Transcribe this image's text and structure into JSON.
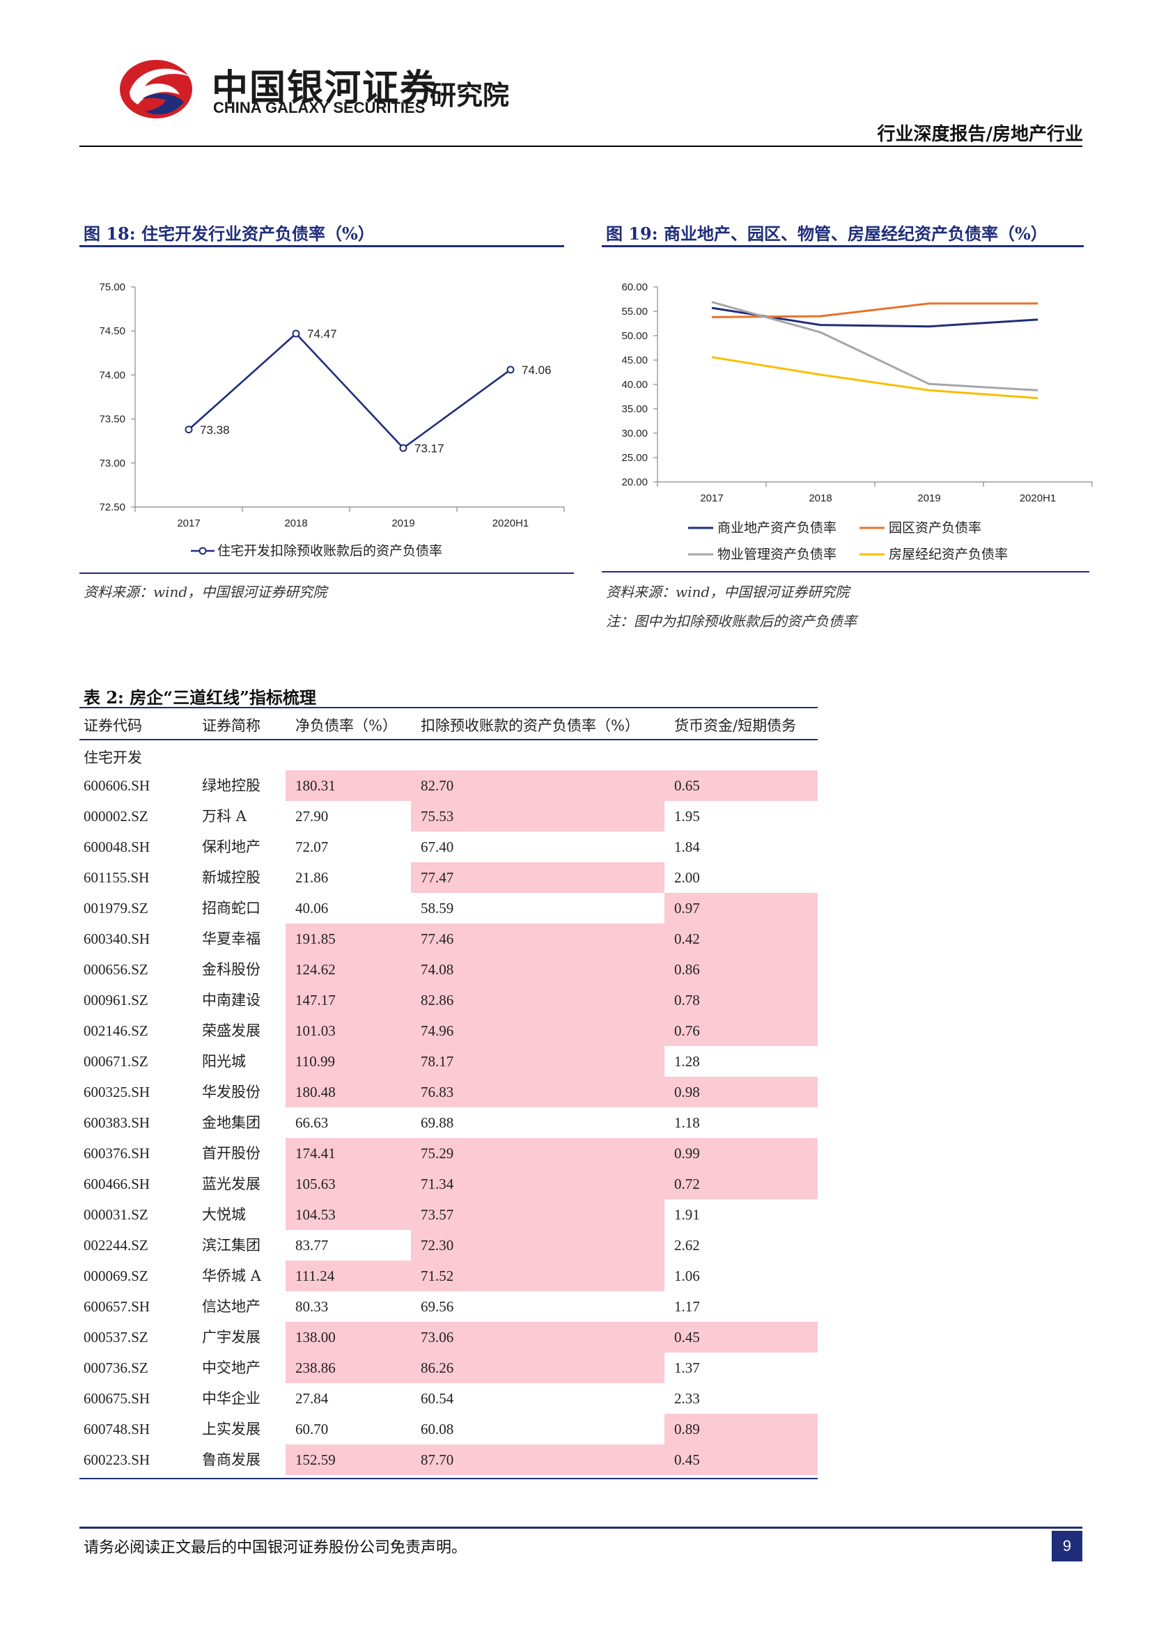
{
  "header": {
    "logo_cn": "中国银河证券",
    "logo_en": "CHINA GALAXY SECURITIES",
    "logo_institute": "研究院",
    "report_type": "行业深度报告/房地产行业",
    "brand_colors": {
      "red": "#d21f26",
      "navy": "#1f2d7a"
    }
  },
  "figure18": {
    "title": "图 18:  住宅开发行业资产负债率（%）",
    "source": "资料来源：wind，中国银河证券研究院"
  },
  "figure19": {
    "title": "图 19:  商业地产、园区、物管、房屋经纪资产负债率（%）",
    "source": "资料来源：wind，中国银河证券研究院",
    "note": "注：图中为扣除预收账款后的资产负债率"
  },
  "chart_data": [
    {
      "type": "line",
      "categories": [
        "2017",
        "2018",
        "2019",
        "2020H1"
      ],
      "series": [
        {
          "name": "住宅开发扣除预收账款后的资产负债率",
          "values": [
            73.38,
            74.47,
            73.17,
            74.06
          ],
          "color": "#1f2d7a",
          "markers": true,
          "data_labels": [
            "73.38",
            "74.47",
            "73.17",
            "74.06"
          ]
        }
      ],
      "ylim": [
        72.5,
        75.0
      ],
      "yticks": [
        "75.00",
        "74.50",
        "74.00",
        "73.50",
        "73.00",
        "72.50"
      ],
      "legend": "bottom"
    },
    {
      "type": "line",
      "categories": [
        "2017",
        "2018",
        "2019",
        "2020H1"
      ],
      "series": [
        {
          "name": "商业地产资产负债率",
          "values": [
            55.7,
            52.2,
            51.9,
            53.3
          ],
          "color": "#1f2d7a"
        },
        {
          "name": "园区资产负债率",
          "values": [
            53.8,
            54.0,
            56.6,
            56.6
          ],
          "color": "#e8722c"
        },
        {
          "name": "物业管理资产负债率",
          "values": [
            56.9,
            50.7,
            40.1,
            38.8
          ],
          "color": "#a6a6a6"
        },
        {
          "name": "房屋经纪资产负债率",
          "values": [
            45.6,
            42.0,
            38.8,
            37.2
          ],
          "color": "#f7bf00"
        }
      ],
      "ylim": [
        20,
        60
      ],
      "yticks": [
        "60.00",
        "55.00",
        "50.00",
        "45.00",
        "40.00",
        "35.00",
        "30.00",
        "25.00",
        "20.00"
      ],
      "legend": "bottom"
    }
  ],
  "table": {
    "title": "表 2:  房企“三道红线”指标梳理",
    "headers": [
      "证券代码",
      "证券简称",
      "净负债率（%）",
      "扣除预收账款的资产负债率（%）",
      "货币资金/短期债务"
    ],
    "group": "住宅开发",
    "highlight_color": "#fbcad3",
    "rows": [
      {
        "code": "600606.SH",
        "name": "绿地控股",
        "net": "180.31",
        "liab": "82.70",
        "cash": "0.65",
        "hl": [
          true,
          true,
          true
        ]
      },
      {
        "code": "000002.SZ",
        "name": "万科 A",
        "net": "27.90",
        "liab": "75.53",
        "cash": "1.95",
        "hl": [
          false,
          true,
          false
        ]
      },
      {
        "code": "600048.SH",
        "name": "保利地产",
        "net": "72.07",
        "liab": "67.40",
        "cash": "1.84",
        "hl": [
          false,
          false,
          false
        ]
      },
      {
        "code": "601155.SH",
        "name": "新城控股",
        "net": "21.86",
        "liab": "77.47",
        "cash": "2.00",
        "hl": [
          false,
          true,
          false
        ]
      },
      {
        "code": "001979.SZ",
        "name": "招商蛇口",
        "net": "40.06",
        "liab": "58.59",
        "cash": "0.97",
        "hl": [
          false,
          false,
          true
        ]
      },
      {
        "code": "600340.SH",
        "name": "华夏幸福",
        "net": "191.85",
        "liab": "77.46",
        "cash": "0.42",
        "hl": [
          true,
          true,
          true
        ]
      },
      {
        "code": "000656.SZ",
        "name": "金科股份",
        "net": "124.62",
        "liab": "74.08",
        "cash": "0.86",
        "hl": [
          true,
          true,
          true
        ]
      },
      {
        "code": "000961.SZ",
        "name": "中南建设",
        "net": "147.17",
        "liab": "82.86",
        "cash": "0.78",
        "hl": [
          true,
          true,
          true
        ]
      },
      {
        "code": "002146.SZ",
        "name": "荣盛发展",
        "net": "101.03",
        "liab": "74.96",
        "cash": "0.76",
        "hl": [
          true,
          true,
          true
        ]
      },
      {
        "code": "000671.SZ",
        "name": "阳光城",
        "net": "110.99",
        "liab": "78.17",
        "cash": "1.28",
        "hl": [
          true,
          true,
          false
        ]
      },
      {
        "code": "600325.SH",
        "name": "华发股份",
        "net": "180.48",
        "liab": "76.83",
        "cash": "0.98",
        "hl": [
          true,
          true,
          true
        ]
      },
      {
        "code": "600383.SH",
        "name": "金地集团",
        "net": "66.63",
        "liab": "69.88",
        "cash": "1.18",
        "hl": [
          false,
          false,
          false
        ]
      },
      {
        "code": "600376.SH",
        "name": "首开股份",
        "net": "174.41",
        "liab": "75.29",
        "cash": "0.99",
        "hl": [
          true,
          true,
          true
        ]
      },
      {
        "code": "600466.SH",
        "name": "蓝光发展",
        "net": "105.63",
        "liab": "71.34",
        "cash": "0.72",
        "hl": [
          true,
          true,
          true
        ]
      },
      {
        "code": "000031.SZ",
        "name": "大悦城",
        "net": "104.53",
        "liab": "73.57",
        "cash": "1.91",
        "hl": [
          true,
          true,
          false
        ]
      },
      {
        "code": "002244.SZ",
        "name": "滨江集团",
        "net": "83.77",
        "liab": "72.30",
        "cash": "2.62",
        "hl": [
          false,
          true,
          false
        ]
      },
      {
        "code": "000069.SZ",
        "name": "华侨城 A",
        "net": "111.24",
        "liab": "71.52",
        "cash": "1.06",
        "hl": [
          true,
          true,
          false
        ]
      },
      {
        "code": "600657.SH",
        "name": "信达地产",
        "net": "80.33",
        "liab": "69.56",
        "cash": "1.17",
        "hl": [
          false,
          false,
          false
        ]
      },
      {
        "code": "000537.SZ",
        "name": "广宇发展",
        "net": "138.00",
        "liab": "73.06",
        "cash": "0.45",
        "hl": [
          true,
          true,
          true
        ]
      },
      {
        "code": "000736.SZ",
        "name": "中交地产",
        "net": "238.86",
        "liab": "86.26",
        "cash": "1.37",
        "hl": [
          true,
          true,
          false
        ]
      },
      {
        "code": "600675.SH",
        "name": "中华企业",
        "net": "27.84",
        "liab": "60.54",
        "cash": "2.33",
        "hl": [
          false,
          false,
          false
        ]
      },
      {
        "code": "600748.SH",
        "name": "上实发展",
        "net": "60.70",
        "liab": "60.08",
        "cash": "0.89",
        "hl": [
          false,
          false,
          true
        ]
      },
      {
        "code": "600223.SH",
        "name": "鲁商发展",
        "net": "152.59",
        "liab": "87.70",
        "cash": "0.45",
        "hl": [
          true,
          true,
          true
        ]
      }
    ]
  },
  "footer": {
    "disclaimer": "请务必阅读正文最后的中国银河证券股份公司免责声明。",
    "page_number": "9"
  }
}
